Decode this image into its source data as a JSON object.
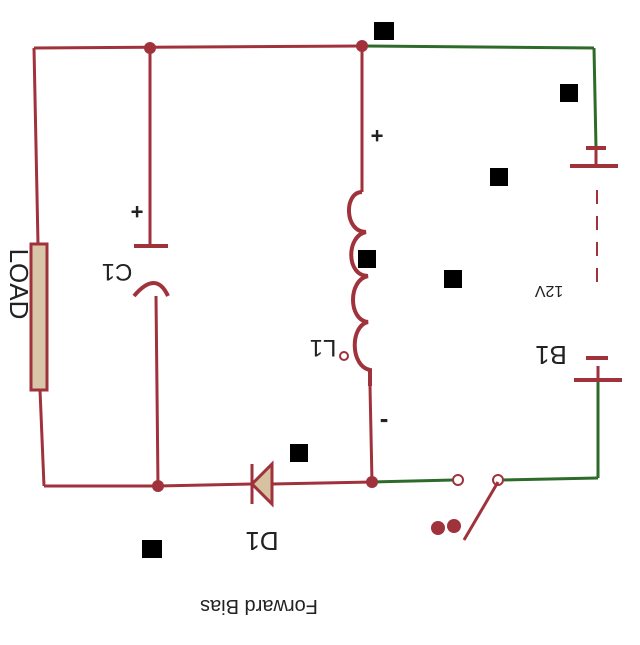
{
  "labels": {
    "load": "LOAD",
    "capacitor": "C1",
    "inductor": "L1",
    "battery": "B1",
    "battery_voltage": "12V",
    "diode": "D1",
    "bias": "Forward Bias",
    "plus_capacitor": "+",
    "plus_inductor": "+",
    "minus_inductor": "-"
  },
  "colors": {
    "wire_red": "#a0323c",
    "wire_green": "#2e6b2a",
    "component": "#a0323c",
    "load_fill": "#d9c6a8",
    "diode_fill": "#d6c2a0",
    "text": "#222222"
  }
}
